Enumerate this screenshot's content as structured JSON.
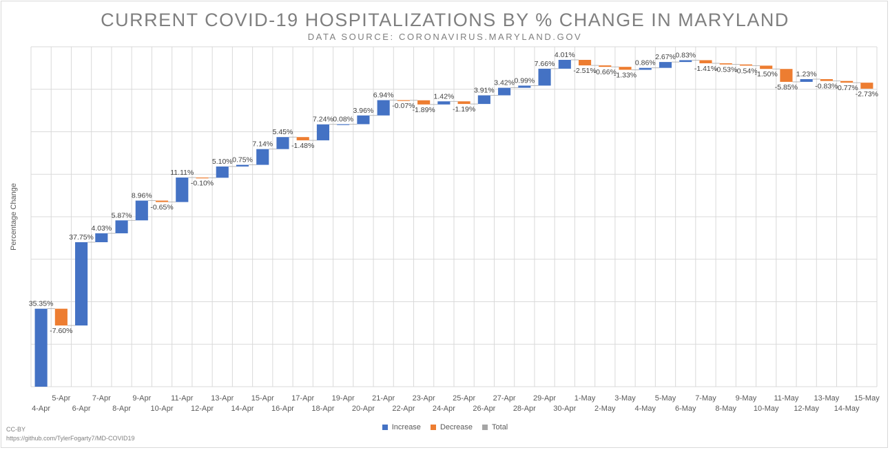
{
  "header": {
    "title": "CURRENT COVID-19 HOSPITALIZATIONS BY % CHANGE IN MARYLAND",
    "subtitle": "DATA SOURCE: CORONAVIRUS.MARYLAND.GOV"
  },
  "footer": {
    "license": "CC-BY",
    "link": "https://github.com/TylerFogarty7/MD-COVID19"
  },
  "legend": {
    "increase": "Increase",
    "decrease": "Decrease",
    "total": "Total"
  },
  "colors": {
    "increase": "#4472c4",
    "decrease": "#ed7d31",
    "total": "#a5a5a5",
    "grid": "#d9d9d9"
  },
  "chart_data": {
    "type": "waterfall",
    "title": "CURRENT COVID-19 HOSPITALIZATIONS BY % CHANGE IN MARYLAND",
    "subtitle": "DATA SOURCE: CORONAVIRUS.MARYLAND.GOV",
    "xlabel": "",
    "ylabel": "Percentage Change",
    "grid": true,
    "legend_position": "bottom",
    "categories": [
      "4-Apr",
      "5-Apr",
      "6-Apr",
      "7-Apr",
      "8-Apr",
      "9-Apr",
      "10-Apr",
      "11-Apr",
      "12-Apr",
      "13-Apr",
      "14-Apr",
      "15-Apr",
      "16-Apr",
      "17-Apr",
      "18-Apr",
      "19-Apr",
      "20-Apr",
      "21-Apr",
      "22-Apr",
      "23-Apr",
      "24-Apr",
      "25-Apr",
      "26-Apr",
      "27-Apr",
      "28-Apr",
      "29-Apr",
      "30-Apr",
      "1-May",
      "2-May",
      "3-May",
      "4-May",
      "5-May",
      "6-May",
      "7-May",
      "8-May",
      "9-May",
      "10-May",
      "11-May",
      "12-May",
      "13-May",
      "14-May",
      "15-May"
    ],
    "values": [
      35.35,
      -7.6,
      37.75,
      4.03,
      5.87,
      8.96,
      -0.65,
      11.11,
      -0.1,
      5.1,
      0.75,
      7.14,
      5.45,
      -1.48,
      7.24,
      0.08,
      3.96,
      6.94,
      -0.07,
      -1.89,
      1.42,
      -1.19,
      3.91,
      3.42,
      0.99,
      7.66,
      4.01,
      -2.51,
      -0.66,
      -1.33,
      0.86,
      2.67,
      0.83,
      -1.41,
      -0.53,
      -0.54,
      -1.5,
      -5.85,
      1.23,
      -0.83,
      -0.77,
      -2.73
    ],
    "labels": [
      "35.35%",
      "-7.60%",
      "37.75%",
      "4.03%",
      "5.87%",
      "8.96%",
      "-0.65%",
      "11.11%",
      "-0.10%",
      "5.10%",
      "0.75%",
      "7.14%",
      "5.45%",
      "-1.48%",
      "7.24%",
      "0.08%",
      "3.96%",
      "6.94%",
      "-0.07%",
      "-1.89%",
      "1.42%",
      "-1.19%",
      "3.91%",
      "3.42%",
      "0.99%",
      "7.66%",
      "4.01%",
      "-2.51%",
      "-0.66%",
      "-1.33%",
      "0.86%",
      "2.67%",
      "0.83%",
      "-1.41%",
      "-0.53%",
      "-0.54%",
      "-1.50%",
      "-5.85%",
      "1.23%",
      "-0.83%",
      "-0.77%",
      "-2.73%"
    ]
  }
}
